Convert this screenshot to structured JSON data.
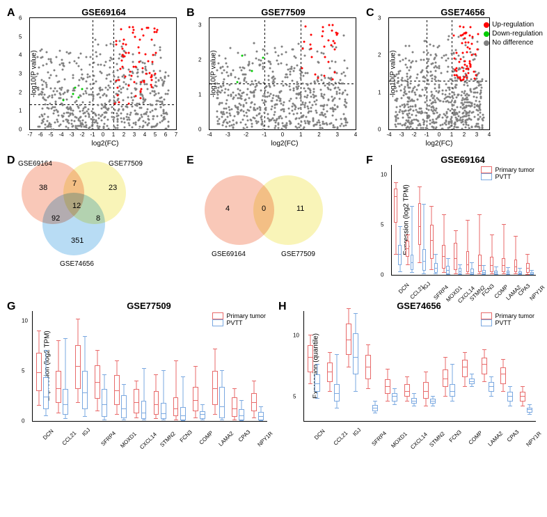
{
  "colors": {
    "up": "#ff0000",
    "down": "#00cc00",
    "none": "#808080",
    "primary": "#e86a6a",
    "pvtt": "#7aa8e0",
    "venn_red": "#f7b5a0",
    "venn_yellow": "#f7f0a0",
    "venn_blue": "#a0d0f0"
  },
  "legend": {
    "up": "Up-regulation",
    "down": "Down-regulation",
    "none": "No difference"
  },
  "genes": [
    "DCN",
    "CCL21",
    "IGJ",
    "SFRP4",
    "MOXD1",
    "CXCL14",
    "STMN2",
    "FCN3",
    "COMP",
    "LAMA2",
    "CPA3",
    "NPY1R"
  ],
  "box_legend": {
    "primary": "Primary tumor",
    "pvtt": "PVTT"
  },
  "panels": {
    "A": {
      "label": "A",
      "title": "GSE69164",
      "ylabel": "-log10(P value)",
      "xlabel": "log2(FC)",
      "xlim": [
        -7,
        7
      ],
      "xticks": [
        -7,
        -6,
        -5,
        -4,
        -3,
        -2,
        -1,
        0,
        1,
        2,
        3,
        4,
        5,
        6,
        7
      ],
      "ylim": [
        0,
        6
      ],
      "yticks": [
        0,
        1,
        2,
        3,
        4,
        5,
        6
      ],
      "threshold_y": 1.3,
      "threshold_x": [
        -1,
        1
      ]
    },
    "B": {
      "label": "B",
      "title": "GSE77509",
      "ylabel": "-log10(P value)",
      "xlabel": "log2(FC)",
      "xlim": [
        -4,
        4
      ],
      "xticks": [
        -4,
        -3,
        -2,
        -1,
        0,
        1,
        2,
        3,
        4
      ],
      "ylim": [
        0,
        3.2
      ],
      "yticks": [
        0,
        1,
        2,
        3
      ],
      "threshold_y": 1.3,
      "threshold_x": [
        -1,
        1
      ]
    },
    "C": {
      "label": "C",
      "title": "GSE74656",
      "ylabel": "-log10(P value)",
      "xlabel": "log2(FC)",
      "xlim": [
        -4,
        4
      ],
      "xticks": [
        -4,
        -3,
        -2,
        -1,
        0,
        1,
        2,
        3,
        4
      ],
      "ylim": [
        0,
        3
      ],
      "yticks": [
        0,
        1,
        2,
        3
      ],
      "threshold_y": 1.3,
      "threshold_x": [
        -1,
        1
      ]
    },
    "D": {
      "label": "D",
      "sets": [
        {
          "name": "GSE69164",
          "n": 38
        },
        {
          "name": "GSE77509",
          "n": 23
        },
        {
          "name": "GSE74656",
          "n": 351
        }
      ],
      "overlaps": {
        "ab": 7,
        "ac": 92,
        "bc": 8,
        "abc": 12
      }
    },
    "E": {
      "label": "E",
      "sets": [
        {
          "name": "GSE69164",
          "n": 4
        },
        {
          "name": "GSE77509",
          "n": 11
        }
      ],
      "overlap": 0
    },
    "F": {
      "label": "F",
      "title": "GSE69164",
      "ylabel": "Expression (log2 TPM)",
      "ylim": [
        0,
        11
      ],
      "yticks": [
        0,
        5,
        10
      ],
      "data": {
        "DCN": {
          "primary": [
            5.2,
            7.8,
            8.6,
            2.0,
            9.2
          ],
          "pvtt": [
            1.0,
            2.0,
            3.0,
            0.3,
            4.8
          ]
        },
        "CCL21": {
          "primary": [
            1.8,
            2.6,
            3.4,
            1.0,
            4.0
          ],
          "pvtt": [
            0.5,
            1.2,
            2.0,
            0.2,
            6.8
          ]
        },
        "IGJ": {
          "primary": [
            3.0,
            4.8,
            7.2,
            1.2,
            8.8
          ],
          "pvtt": [
            0.4,
            1.3,
            2.6,
            0.1,
            7.0
          ]
        },
        "SFRP4": {
          "primary": [
            1.6,
            3.4,
            5.0,
            0.5,
            6.8
          ],
          "pvtt": [
            0.2,
            0.6,
            1.2,
            0.05,
            2.0
          ]
        },
        "MOXD1": {
          "primary": [
            0.6,
            1.8,
            3.0,
            0.2,
            6.0
          ],
          "pvtt": [
            0.1,
            0.4,
            0.9,
            0.02,
            1.6
          ]
        },
        "CXCL14": {
          "primary": [
            0.5,
            1.6,
            3.2,
            0.1,
            4.4
          ],
          "pvtt": [
            0.1,
            0.3,
            0.7,
            0.02,
            1.0
          ]
        },
        "STMN2": {
          "primary": [
            0.3,
            1.0,
            2.4,
            0.05,
            5.4
          ],
          "pvtt": [
            0.05,
            0.2,
            0.6,
            0.01,
            1.2
          ]
        },
        "FCN3": {
          "primary": [
            0.3,
            0.9,
            2.0,
            0.05,
            6.0
          ],
          "pvtt": [
            0.05,
            0.2,
            0.5,
            0.01,
            0.9
          ]
        },
        "COMP": {
          "primary": [
            0.3,
            0.9,
            1.8,
            0.05,
            4.0
          ],
          "pvtt": [
            0.05,
            0.2,
            0.4,
            0.01,
            0.8
          ]
        },
        "LAMA2": {
          "primary": [
            0.3,
            0.9,
            1.7,
            0.05,
            5.0
          ],
          "pvtt": [
            0.05,
            0.2,
            0.4,
            0.01,
            0.7
          ]
        },
        "CPA3": {
          "primary": [
            0.3,
            0.8,
            1.5,
            0.05,
            3.8
          ],
          "pvtt": [
            0.05,
            0.15,
            0.35,
            0.01,
            0.6
          ]
        },
        "NPY1R": {
          "primary": [
            0.2,
            0.6,
            1.2,
            0.03,
            2.0
          ],
          "pvtt": [
            0.03,
            0.1,
            0.25,
            0.005,
            0.4
          ]
        }
      }
    },
    "G": {
      "label": "G",
      "title": "GSE77509",
      "ylabel": "Expression (log2 TPM)",
      "ylim": [
        0,
        11
      ],
      "yticks": [
        0,
        5,
        10
      ],
      "data": {
        "DCN": {
          "primary": [
            3.0,
            4.8,
            6.8,
            1.5,
            9.0
          ],
          "pvtt": [
            1.2,
            2.4,
            4.4,
            0.5,
            7.0
          ]
        },
        "CCL21": {
          "primary": [
            1.8,
            3.2,
            5.0,
            0.8,
            8.0
          ],
          "pvtt": [
            0.6,
            1.6,
            3.2,
            0.2,
            8.2
          ]
        },
        "IGJ": {
          "primary": [
            3.2,
            5.4,
            7.6,
            1.8,
            10.2
          ],
          "pvtt": [
            1.2,
            2.8,
            5.0,
            0.4,
            8.4
          ]
        },
        "SFRP4": {
          "primary": [
            2.2,
            3.8,
            5.6,
            1.0,
            7.0
          ],
          "pvtt": [
            0.4,
            1.6,
            3.2,
            0.1,
            4.6
          ]
        },
        "MOXD1": {
          "primary": [
            1.6,
            3.0,
            4.6,
            0.6,
            6.0
          ],
          "pvtt": [
            0.3,
            1.2,
            2.6,
            0.1,
            3.6
          ]
        },
        "CXCL14": {
          "primary": [
            0.8,
            1.8,
            3.2,
            0.3,
            4.0
          ],
          "pvtt": [
            0.2,
            0.8,
            2.0,
            0.05,
            5.2
          ]
        },
        "STMN2": {
          "primary": [
            0.6,
            1.6,
            3.0,
            0.2,
            4.6
          ],
          "pvtt": [
            0.2,
            0.7,
            1.8,
            0.05,
            5.0
          ]
        },
        "FCN3": {
          "primary": [
            0.5,
            1.2,
            2.4,
            0.1,
            6.0
          ],
          "pvtt": [
            0.1,
            0.5,
            1.4,
            0.03,
            4.4
          ]
        },
        "COMP": {
          "primary": [
            1.0,
            2.0,
            3.4,
            0.3,
            5.4
          ],
          "pvtt": [
            0.2,
            0.6,
            1.0,
            0.05,
            1.6
          ]
        },
        "LAMA2": {
          "primary": [
            1.6,
            3.2,
            5.0,
            0.6,
            7.2
          ],
          "pvtt": [
            0.3,
            1.4,
            3.4,
            0.1,
            5.0
          ]
        },
        "CPA3": {
          "primary": [
            0.4,
            1.2,
            2.4,
            0.1,
            3.2
          ],
          "pvtt": [
            0.1,
            0.5,
            1.2,
            0.03,
            2.0
          ]
        },
        "NPY1R": {
          "primary": [
            1.0,
            1.8,
            2.8,
            0.3,
            4.0
          ],
          "pvtt": [
            0.1,
            0.4,
            0.9,
            0.03,
            1.4
          ]
        }
      }
    },
    "H": {
      "label": "H",
      "title": "GSE74656",
      "ylabel": "Expression (quantile)",
      "ylim": [
        3,
        12
      ],
      "yticks": [
        5,
        10
      ],
      "data": {
        "DCN": {
          "primary": [
            7.0,
            8.2,
            9.2,
            6.0,
            10.0
          ],
          "pvtt": [
            5.4,
            6.0,
            6.8,
            4.8,
            7.6
          ]
        },
        "CCL21": {
          "primary": [
            6.2,
            7.0,
            7.8,
            5.4,
            8.6
          ],
          "pvtt": [
            4.6,
            5.2,
            6.0,
            4.0,
            8.4
          ]
        },
        "IGJ": {
          "primary": [
            8.4,
            9.6,
            11.0,
            7.4,
            12.2
          ],
          "pvtt": [
            6.8,
            8.2,
            10.2,
            5.4,
            11.8
          ]
        },
        "SFRP4": {
          "primary": [
            6.4,
            7.4,
            8.4,
            5.6,
            9.2
          ],
          "pvtt": [
            3.8,
            4.0,
            4.3,
            3.6,
            4.6
          ]
        },
        "MOXD1": {
          "primary": [
            5.2,
            5.8,
            6.4,
            4.6,
            7.2
          ],
          "pvtt": [
            4.6,
            5.0,
            5.3,
            4.3,
            5.6
          ]
        },
        "CXCL14": {
          "primary": [
            5.0,
            5.4,
            6.0,
            4.6,
            6.6
          ],
          "pvtt": [
            4.4,
            4.6,
            4.9,
            4.2,
            5.2
          ]
        },
        "STMN2": {
          "primary": [
            4.8,
            5.4,
            6.2,
            4.2,
            7.0
          ],
          "pvtt": [
            4.4,
            4.6,
            4.8,
            4.2,
            5.0
          ]
        },
        "FCN3": {
          "primary": [
            5.8,
            6.4,
            7.2,
            5.0,
            8.2
          ],
          "pvtt": [
            5.0,
            5.4,
            6.0,
            4.6,
            7.6
          ]
        },
        "COMP": {
          "primary": [
            6.6,
            7.4,
            8.0,
            5.8,
            8.6
          ],
          "pvtt": [
            6.0,
            6.2,
            6.5,
            5.8,
            6.8
          ]
        },
        "LAMA2": {
          "primary": [
            6.8,
            7.6,
            8.2,
            6.2,
            8.8
          ],
          "pvtt": [
            5.4,
            5.8,
            6.2,
            5.0,
            6.6
          ]
        },
        "CPA3": {
          "primary": [
            6.0,
            6.8,
            7.4,
            5.4,
            8.0
          ],
          "pvtt": [
            4.6,
            5.0,
            5.4,
            4.2,
            5.8
          ]
        },
        "NPY1R": {
          "primary": [
            4.6,
            5.0,
            5.4,
            4.2,
            5.8
          ],
          "pvtt": [
            3.7,
            3.9,
            4.1,
            3.5,
            4.3
          ]
        }
      }
    }
  }
}
